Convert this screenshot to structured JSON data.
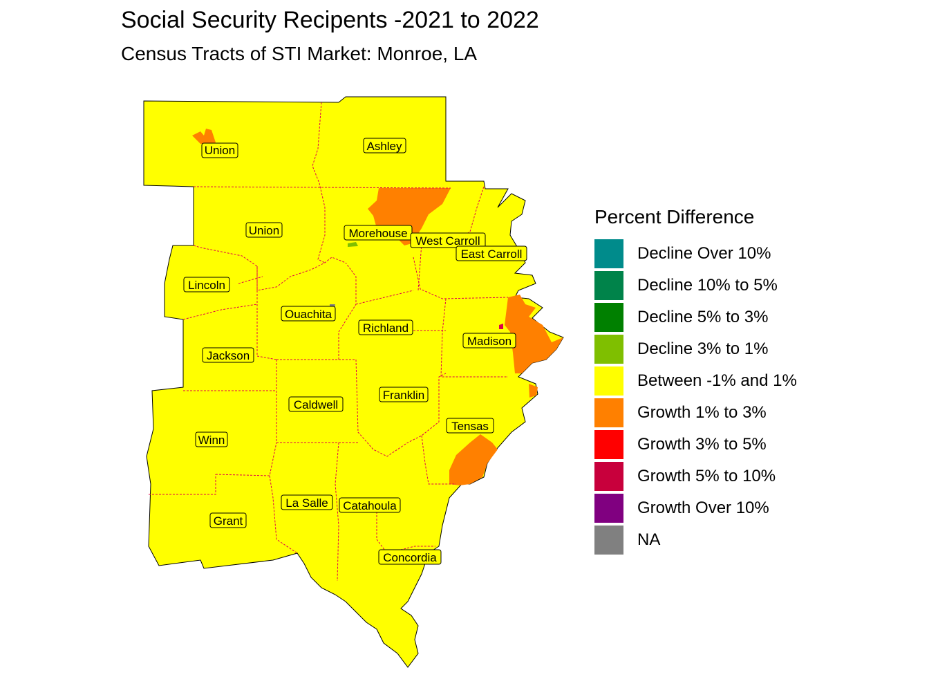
{
  "title": "Social Security Recipents -2021 to 2022",
  "subtitle": "Census Tracts of STI Market: Monroe, LA",
  "legend": {
    "title": "Percent Difference",
    "items": [
      {
        "label": "Decline Over 10%",
        "color": "#008B8B"
      },
      {
        "label": "Decline 10% to 5%",
        "color": "#00834A"
      },
      {
        "label": "Decline 5% to 3%",
        "color": "#008000"
      },
      {
        "label": "Decline 3% to 1%",
        "color": "#7FBF00"
      },
      {
        "label": "Between -1% and 1%",
        "color": "#FFFF00"
      },
      {
        "label": "Growth 1% to 3%",
        "color": "#FF8000"
      },
      {
        "label": "Growth 3% to 5%",
        "color": "#FF0000"
      },
      {
        "label": "Growth 5% to 10%",
        "color": "#C8003C"
      },
      {
        "label": "Growth Over 10%",
        "color": "#800080"
      },
      {
        "label": "NA",
        "color": "#808080"
      }
    ]
  },
  "parishes": [
    {
      "name": "Union"
    },
    {
      "name": "Ashley"
    },
    {
      "name": "Union"
    },
    {
      "name": "Morehouse"
    },
    {
      "name": "West Carroll"
    },
    {
      "name": "East Carroll"
    },
    {
      "name": "Lincoln"
    },
    {
      "name": "Ouachita"
    },
    {
      "name": "Richland"
    },
    {
      "name": "Madison"
    },
    {
      "name": "Jackson"
    },
    {
      "name": "Caldwell"
    },
    {
      "name": "Franklin"
    },
    {
      "name": "Tensas"
    },
    {
      "name": "Winn"
    },
    {
      "name": "La Salle"
    },
    {
      "name": "Catahoula"
    },
    {
      "name": "Grant"
    },
    {
      "name": "Concordia"
    }
  ],
  "colors": {
    "fill_default": "#FFFF00",
    "border": "#000000",
    "tract_line": "#E0004A"
  }
}
